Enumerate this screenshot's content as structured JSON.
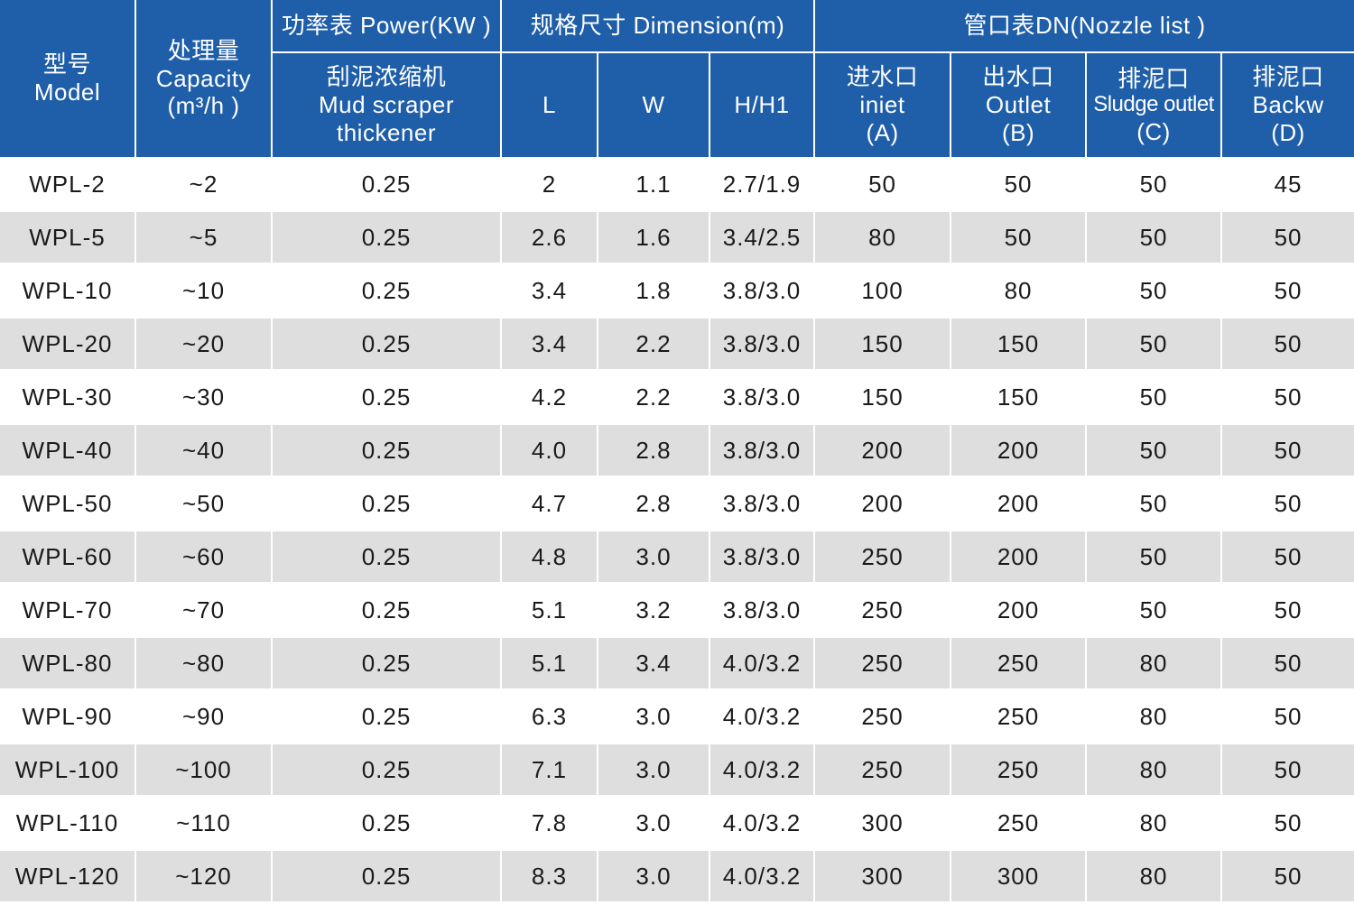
{
  "header": {
    "model": [
      "型号",
      "Model"
    ],
    "capacity": [
      "处理量",
      "Capacity",
      "(m³/h )"
    ],
    "power_group": "功率表 Power(KW )",
    "power_sub": [
      "刮泥浓缩机",
      "Mud scraper",
      "thickener"
    ],
    "dimension_group": "规格尺寸 Dimension(m)",
    "dim_l": "L",
    "dim_w": "W",
    "dim_h": "H/H1",
    "nozzle_group": "管口表DN(Nozzle list )",
    "inlet": [
      "进水口",
      "iniet",
      "(A)"
    ],
    "outlet": [
      "出水口",
      "Outlet",
      "(B)"
    ],
    "sludge": [
      "排泥口",
      "Sludge outlet",
      "(C)"
    ],
    "backw": [
      "排泥口",
      "Backw",
      "(D)"
    ]
  },
  "rows": [
    [
      "WPL-2",
      "~2",
      "0.25",
      "2",
      "1.1",
      "2.7/1.9",
      "50",
      "50",
      "50",
      "45"
    ],
    [
      "WPL-5",
      "~5",
      "0.25",
      "2.6",
      "1.6",
      "3.4/2.5",
      "80",
      "50",
      "50",
      "50"
    ],
    [
      "WPL-10",
      "~10",
      "0.25",
      "3.4",
      "1.8",
      "3.8/3.0",
      "100",
      "80",
      "50",
      "50"
    ],
    [
      "WPL-20",
      "~20",
      "0.25",
      "3.4",
      "2.2",
      "3.8/3.0",
      "150",
      "150",
      "50",
      "50"
    ],
    [
      "WPL-30",
      "~30",
      "0.25",
      "4.2",
      "2.2",
      "3.8/3.0",
      "150",
      "150",
      "50",
      "50"
    ],
    [
      "WPL-40",
      "~40",
      "0.25",
      "4.0",
      "2.8",
      "3.8/3.0",
      "200",
      "200",
      "50",
      "50"
    ],
    [
      "WPL-50",
      "~50",
      "0.25",
      "4.7",
      "2.8",
      "3.8/3.0",
      "200",
      "200",
      "50",
      "50"
    ],
    [
      "WPL-60",
      "~60",
      "0.25",
      "4.8",
      "3.0",
      "3.8/3.0",
      "250",
      "200",
      "50",
      "50"
    ],
    [
      "WPL-70",
      "~70",
      "0.25",
      "5.1",
      "3.2",
      "3.8/3.0",
      "250",
      "200",
      "50",
      "50"
    ],
    [
      "WPL-80",
      "~80",
      "0.25",
      "5.1",
      "3.4",
      "4.0/3.2",
      "250",
      "250",
      "80",
      "50"
    ],
    [
      "WPL-90",
      "~90",
      "0.25",
      "6.3",
      "3.0",
      "4.0/3.2",
      "250",
      "250",
      "80",
      "50"
    ],
    [
      "WPL-100",
      "~100",
      "0.25",
      "7.1",
      "3.0",
      "4.0/3.2",
      "250",
      "250",
      "80",
      "50"
    ],
    [
      "WPL-110",
      "~110",
      "0.25",
      "7.8",
      "3.0",
      "4.0/3.2",
      "300",
      "250",
      "80",
      "50"
    ],
    [
      "WPL-120",
      "~120",
      "0.25",
      "8.3",
      "3.0",
      "4.0/3.2",
      "300",
      "300",
      "80",
      "50"
    ]
  ],
  "colors": {
    "header_bg": "#1f5ea8",
    "stripe": "#dedede"
  }
}
